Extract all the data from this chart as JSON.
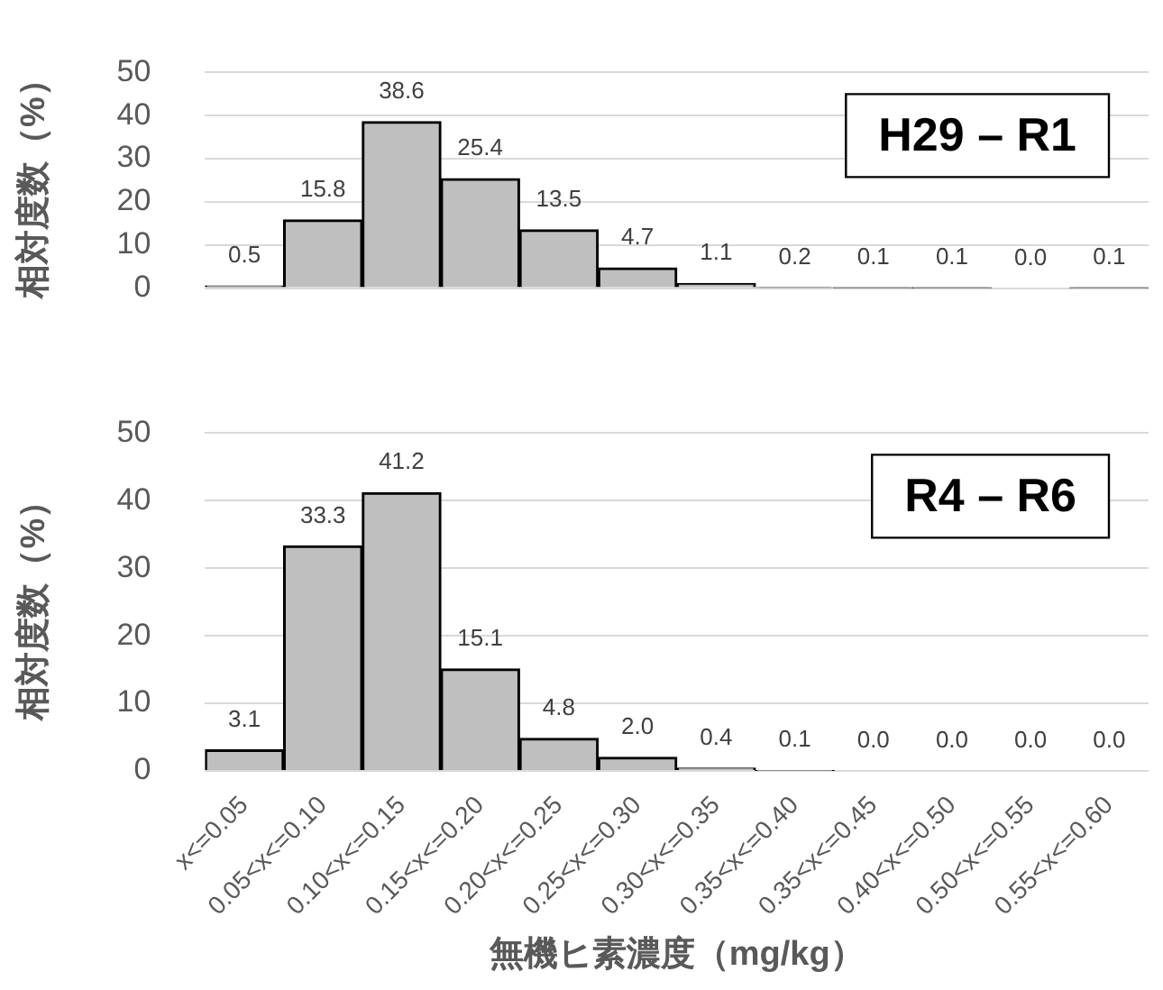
{
  "chart_data": [
    {
      "type": "bar",
      "ylabel": "相対度数（%）",
      "annotations": [
        "H29 – R1"
      ],
      "categories": [
        null,
        null,
        null,
        null,
        null,
        null,
        null,
        null,
        null,
        null,
        null,
        null
      ],
      "values": [
        0.5,
        15.8,
        38.6,
        25.4,
        13.5,
        4.7,
        1.1,
        0.2,
        0.1,
        0.1,
        0.0,
        0.1
      ],
      "value_labels": [
        "0.5",
        "15.8",
        "38.6",
        "25.4",
        "13.5",
        "4.7",
        "1.1",
        "0.2",
        "0.1",
        "0.1",
        "0.0",
        "0.1"
      ],
      "color": "#bfbfbf",
      "ylim": [
        0,
        50
      ],
      "yticks": [
        0,
        10,
        20,
        30,
        40,
        50
      ],
      "grid": "y",
      "tick_labels": "y"
    },
    {
      "type": "bar",
      "ylabel": "相対度数（%）",
      "xlabel": "無機ヒ素濃度（mg/kg）",
      "annotations": [
        "R4 – R6"
      ],
      "categories": [
        "x<=0.05",
        "0.05<x<=0.10",
        "0.10<x<=0.15",
        "0.15<x<=0.20",
        "0.20<x<=0.25",
        "0.25<x<=0.30",
        "0.30<x<=0.35",
        "0.35<x<=0.40",
        "0.35<x<=0.45",
        "0.40<x<=0.50",
        "0.50<x<=0.55",
        "0.55<x<=0.60"
      ],
      "values": [
        3.1,
        33.3,
        41.2,
        15.1,
        4.8,
        2.0,
        0.4,
        0.1,
        0.0,
        0.0,
        0.0,
        0.0
      ],
      "value_labels": [
        "3.1",
        "33.3",
        "41.2",
        "15.1",
        "4.8",
        "2.0",
        "0.4",
        "0.1",
        "0.0",
        "0.0",
        "0.0",
        "0.0"
      ],
      "color": "#bfbfbf",
      "ylim": [
        0,
        50
      ],
      "yticks": [
        0,
        10,
        20,
        30,
        40,
        50
      ],
      "grid": "y"
    }
  ]
}
